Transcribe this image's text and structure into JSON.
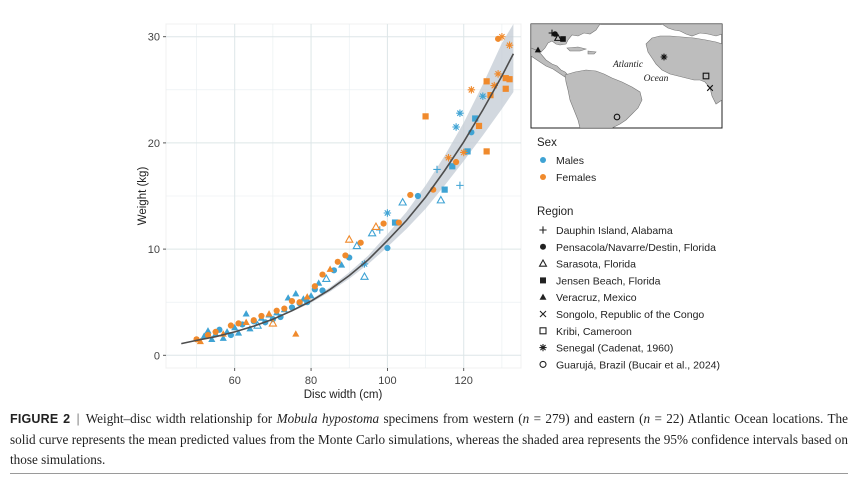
{
  "colors": {
    "males": "#3fa3d4",
    "females": "#f08a2c",
    "curve": "#4d4d4d",
    "band": "#c3cbd4",
    "grid": "#e7eef0"
  },
  "chart_data": {
    "type": "scatter",
    "xlabel": "Disc width (cm)",
    "ylabel": "Weight (kg)",
    "xlim": [
      42,
      135
    ],
    "ylim": [
      -1.2,
      31.2
    ],
    "xticks": [
      "60",
      "80",
      "100",
      "120"
    ],
    "xtick_values": [
      60,
      80,
      100,
      120
    ],
    "yticks": [
      "0",
      "10",
      "20",
      "30"
    ],
    "ytick_values": [
      0,
      10,
      20,
      30
    ],
    "grid": true,
    "legend_sex_title": "Sex",
    "legend_sex": [
      {
        "name": "Males",
        "color": "#3fa3d4"
      },
      {
        "name": "Females",
        "color": "#f08a2c"
      }
    ],
    "legend_region_title": "Region",
    "legend_region": [
      {
        "name": "Dauphin Island, Alabama",
        "symbol": "plus"
      },
      {
        "name": "Pensacola/Navarre/Destin, Florida",
        "symbol": "circle"
      },
      {
        "name": "Sarasota, Florida",
        "symbol": "triangle-open"
      },
      {
        "name": "Jensen Beach, Florida",
        "symbol": "square"
      },
      {
        "name": "Veracruz, Mexico",
        "symbol": "triangle"
      },
      {
        "name": "Songolo, Republic of the Congo",
        "symbol": "cross"
      },
      {
        "name": "Kribi, Cameroon",
        "symbol": "square-open"
      },
      {
        "name": "Senegal (Cadenat, 1960)",
        "symbol": "asterisk"
      },
      {
        "name": "Guarujá, Brazil (Bucair et al., 2024)",
        "symbol": "circle-open"
      }
    ],
    "curve": {
      "name": "Mean predicted values",
      "x": [
        46,
        50,
        55,
        60,
        65,
        70,
        75,
        80,
        85,
        90,
        95,
        100,
        105,
        110,
        115,
        120,
        125,
        130,
        133
      ],
      "y": [
        1.1,
        1.4,
        1.75,
        2.2,
        2.75,
        3.4,
        4.2,
        5.1,
        6.2,
        7.5,
        9.0,
        10.8,
        12.7,
        14.9,
        17.4,
        20.1,
        23.1,
        26.3,
        28.4
      ],
      "ci_lower": [
        1.05,
        1.35,
        1.7,
        2.15,
        2.7,
        3.35,
        4.1,
        4.95,
        6.0,
        7.2,
        8.6,
        10.2,
        11.9,
        13.8,
        16.0,
        18.3,
        20.7,
        23.2,
        24.8
      ],
      "ci_upper": [
        1.15,
        1.45,
        1.8,
        2.25,
        2.8,
        3.45,
        4.3,
        5.25,
        6.4,
        7.8,
        9.4,
        11.4,
        13.5,
        16.0,
        18.8,
        21.9,
        25.5,
        29.4,
        31.8
      ]
    },
    "series": [
      {
        "name": "Males",
        "points": [
          {
            "x": 52,
            "y": 1.8,
            "s": "triangle"
          },
          {
            "x": 53,
            "y": 2.3,
            "s": "triangle"
          },
          {
            "x": 54,
            "y": 1.5,
            "s": "triangle"
          },
          {
            "x": 55,
            "y": 2.0,
            "s": "triangle"
          },
          {
            "x": 56,
            "y": 2.4,
            "s": "circle"
          },
          {
            "x": 57,
            "y": 1.6,
            "s": "triangle"
          },
          {
            "x": 58,
            "y": 2.2,
            "s": "triangle"
          },
          {
            "x": 59,
            "y": 1.9,
            "s": "circle"
          },
          {
            "x": 60,
            "y": 2.6,
            "s": "triangle"
          },
          {
            "x": 61,
            "y": 2.1,
            "s": "triangle"
          },
          {
            "x": 62,
            "y": 2.9,
            "s": "circle"
          },
          {
            "x": 63,
            "y": 3.9,
            "s": "triangle"
          },
          {
            "x": 64,
            "y": 2.5,
            "s": "triangle"
          },
          {
            "x": 65,
            "y": 3.2,
            "s": "circle"
          },
          {
            "x": 66,
            "y": 2.8,
            "s": "triangle-open"
          },
          {
            "x": 67,
            "y": 3.5,
            "s": "triangle"
          },
          {
            "x": 68,
            "y": 3.1,
            "s": "circle"
          },
          {
            "x": 69,
            "y": 3.8,
            "s": "triangle"
          },
          {
            "x": 70,
            "y": 3.4,
            "s": "circle"
          },
          {
            "x": 71,
            "y": 4.0,
            "s": "triangle"
          },
          {
            "x": 72,
            "y": 3.6,
            "s": "circle"
          },
          {
            "x": 73,
            "y": 4.3,
            "s": "triangle"
          },
          {
            "x": 74,
            "y": 5.4,
            "s": "triangle"
          },
          {
            "x": 75,
            "y": 4.5,
            "s": "circle"
          },
          {
            "x": 76,
            "y": 5.8,
            "s": "triangle"
          },
          {
            "x": 77,
            "y": 4.9,
            "s": "circle"
          },
          {
            "x": 78,
            "y": 5.3,
            "s": "triangle"
          },
          {
            "x": 79,
            "y": 5.0,
            "s": "circle"
          },
          {
            "x": 80,
            "y": 5.6,
            "s": "triangle"
          },
          {
            "x": 81,
            "y": 6.2,
            "s": "circle"
          },
          {
            "x": 82,
            "y": 6.8,
            "s": "triangle"
          },
          {
            "x": 83,
            "y": 6.1,
            "s": "circle"
          },
          {
            "x": 84,
            "y": 7.2,
            "s": "triangle-open"
          },
          {
            "x": 86,
            "y": 8.0,
            "s": "circle"
          },
          {
            "x": 88,
            "y": 8.5,
            "s": "triangle"
          },
          {
            "x": 90,
            "y": 9.2,
            "s": "circle"
          },
          {
            "x": 92,
            "y": 10.3,
            "s": "triangle-open"
          },
          {
            "x": 94,
            "y": 8.6,
            "s": "asterisk"
          },
          {
            "x": 94,
            "y": 7.4,
            "s": "triangle-open"
          },
          {
            "x": 96,
            "y": 11.5,
            "s": "triangle-open"
          },
          {
            "x": 98,
            "y": 11.8,
            "s": "plus"
          },
          {
            "x": 100,
            "y": 13.4,
            "s": "asterisk"
          },
          {
            "x": 100,
            "y": 10.1,
            "s": "circle"
          },
          {
            "x": 102,
            "y": 12.5,
            "s": "square"
          },
          {
            "x": 104,
            "y": 14.4,
            "s": "triangle-open"
          },
          {
            "x": 108,
            "y": 15.0,
            "s": "circle"
          },
          {
            "x": 113,
            "y": 17.5,
            "s": "plus"
          },
          {
            "x": 114,
            "y": 14.6,
            "s": "triangle-open"
          },
          {
            "x": 115,
            "y": 15.6,
            "s": "square"
          },
          {
            "x": 117,
            "y": 17.8,
            "s": "square"
          },
          {
            "x": 118,
            "y": 21.5,
            "s": "asterisk"
          },
          {
            "x": 119,
            "y": 16.0,
            "s": "plus"
          },
          {
            "x": 119,
            "y": 22.8,
            "s": "asterisk"
          },
          {
            "x": 121,
            "y": 19.2,
            "s": "square"
          },
          {
            "x": 122,
            "y": 21.0,
            "s": "circle"
          },
          {
            "x": 123,
            "y": 22.3,
            "s": "square"
          },
          {
            "x": 125,
            "y": 24.4,
            "s": "asterisk"
          }
        ]
      },
      {
        "name": "Females",
        "points": [
          {
            "x": 50,
            "y": 1.5,
            "s": "circle"
          },
          {
            "x": 51,
            "y": 1.3,
            "s": "triangle"
          },
          {
            "x": 53,
            "y": 1.9,
            "s": "circle"
          },
          {
            "x": 55,
            "y": 2.2,
            "s": "circle"
          },
          {
            "x": 57,
            "y": 2.0,
            "s": "triangle"
          },
          {
            "x": 59,
            "y": 2.8,
            "s": "circle"
          },
          {
            "x": 61,
            "y": 3.0,
            "s": "circle"
          },
          {
            "x": 63,
            "y": 3.1,
            "s": "triangle"
          },
          {
            "x": 65,
            "y": 3.3,
            "s": "circle"
          },
          {
            "x": 67,
            "y": 3.7,
            "s": "circle"
          },
          {
            "x": 69,
            "y": 3.9,
            "s": "triangle"
          },
          {
            "x": 70,
            "y": 3.0,
            "s": "triangle-open"
          },
          {
            "x": 71,
            "y": 4.2,
            "s": "circle"
          },
          {
            "x": 73,
            "y": 4.4,
            "s": "circle"
          },
          {
            "x": 75,
            "y": 5.1,
            "s": "circle"
          },
          {
            "x": 76,
            "y": 2.0,
            "s": "triangle"
          },
          {
            "x": 77,
            "y": 5.0,
            "s": "circle"
          },
          {
            "x": 79,
            "y": 5.5,
            "s": "triangle"
          },
          {
            "x": 81,
            "y": 6.5,
            "s": "circle"
          },
          {
            "x": 83,
            "y": 7.6,
            "s": "circle"
          },
          {
            "x": 85,
            "y": 8.1,
            "s": "triangle"
          },
          {
            "x": 87,
            "y": 8.8,
            "s": "circle"
          },
          {
            "x": 89,
            "y": 9.4,
            "s": "circle"
          },
          {
            "x": 90,
            "y": 10.9,
            "s": "triangle-open"
          },
          {
            "x": 93,
            "y": 10.6,
            "s": "circle"
          },
          {
            "x": 97,
            "y": 12.1,
            "s": "triangle-open"
          },
          {
            "x": 99,
            "y": 12.4,
            "s": "circle"
          },
          {
            "x": 103,
            "y": 12.5,
            "s": "circle"
          },
          {
            "x": 106,
            "y": 15.1,
            "s": "circle"
          },
          {
            "x": 110,
            "y": 22.5,
            "s": "square"
          },
          {
            "x": 112,
            "y": 15.6,
            "s": "circle"
          },
          {
            "x": 116,
            "y": 18.6,
            "s": "asterisk"
          },
          {
            "x": 118,
            "y": 18.2,
            "s": "circle"
          },
          {
            "x": 120,
            "y": 19.1,
            "s": "asterisk"
          },
          {
            "x": 122,
            "y": 25.0,
            "s": "asterisk"
          },
          {
            "x": 124,
            "y": 21.6,
            "s": "square"
          },
          {
            "x": 126,
            "y": 25.8,
            "s": "square"
          },
          {
            "x": 126,
            "y": 19.2,
            "s": "square"
          },
          {
            "x": 127,
            "y": 24.5,
            "s": "square"
          },
          {
            "x": 128,
            "y": 25.4,
            "s": "asterisk"
          },
          {
            "x": 129,
            "y": 26.5,
            "s": "asterisk"
          },
          {
            "x": 129,
            "y": 29.8,
            "s": "circle"
          },
          {
            "x": 130,
            "y": 30.0,
            "s": "asterisk"
          },
          {
            "x": 131,
            "y": 26.1,
            "s": "square"
          },
          {
            "x": 131,
            "y": 25.1,
            "s": "square"
          },
          {
            "x": 132,
            "y": 29.2,
            "s": "asterisk"
          },
          {
            "x": 132,
            "y": 26.0,
            "s": "square"
          }
        ]
      }
    ]
  },
  "inset_map": {
    "ocean_label": "Atlantic Ocean",
    "locations": [
      {
        "name": "Dauphin Island, Alabama",
        "symbol": "plus"
      },
      {
        "name": "Pensacola/Navarre/Destin, Florida",
        "symbol": "circle"
      },
      {
        "name": "Sarasota, Florida",
        "symbol": "triangle-open"
      },
      {
        "name": "Jensen Beach, Florida",
        "symbol": "square"
      },
      {
        "name": "Veracruz, Mexico",
        "symbol": "triangle"
      },
      {
        "name": "Songolo, Republic of the Congo",
        "symbol": "cross"
      },
      {
        "name": "Kribi, Cameroon",
        "symbol": "square-open"
      },
      {
        "name": "Senegal (Cadenat, 1960)",
        "symbol": "asterisk"
      },
      {
        "name": "Guarujá, Brazil (Bucair et al., 2024)",
        "symbol": "circle-open"
      }
    ]
  },
  "caption": {
    "label": "FIGURE 2",
    "separator": "|",
    "text_before_species": "Weight–disc width relationship for ",
    "species": "Mobula hypostoma",
    "text_after_species": " specimens from western (",
    "n1_var": "n",
    "n1_value": " = 279) and eastern (",
    "n2_var": "n",
    "n2_value": " = 22) Atlantic Ocean locations. The solid curve represents the mean predicted values from the Monte Carlo simulations, whereas the shaded area represents the 95% confidence intervals based on those simulations."
  }
}
